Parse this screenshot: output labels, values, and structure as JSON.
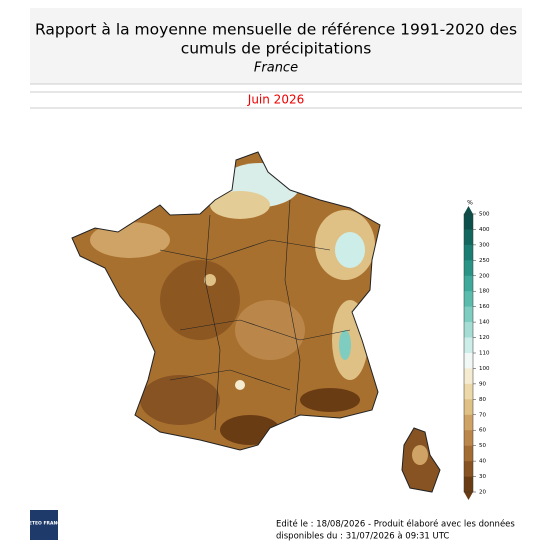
{
  "header": {
    "title_line1": "Rapport à la moyenne mensuelle de référence 1991-2020 des",
    "title_line2": "cumuls de précipitations",
    "subtitle": "France",
    "period": "Juin 2026"
  },
  "legend": {
    "unit": "%",
    "ticks": [
      500,
      400,
      300,
      250,
      200,
      180,
      160,
      140,
      120,
      110,
      100,
      90,
      80,
      70,
      60,
      50,
      40,
      30,
      20
    ],
    "colors": [
      "#0d4f4a",
      "#14675f",
      "#1c7d74",
      "#2a9487",
      "#3fa99b",
      "#5bbcae",
      "#7ecdc0",
      "#a5ddd4",
      "#cdeee8",
      "#f2f8f6",
      "#f5ebd0",
      "#ecd8a8",
      "#dfc085",
      "#cfa365",
      "#bb864a",
      "#a36c33",
      "#875322",
      "#6a3c14"
    ]
  },
  "logo": {
    "text": "METEO FRANCE"
  },
  "footer": {
    "line1": "Edité le : 18/08/2026 - Produit élaboré avec les données",
    "line2": "disponibles du : 31/07/2026 à 09:31 UTC"
  }
}
